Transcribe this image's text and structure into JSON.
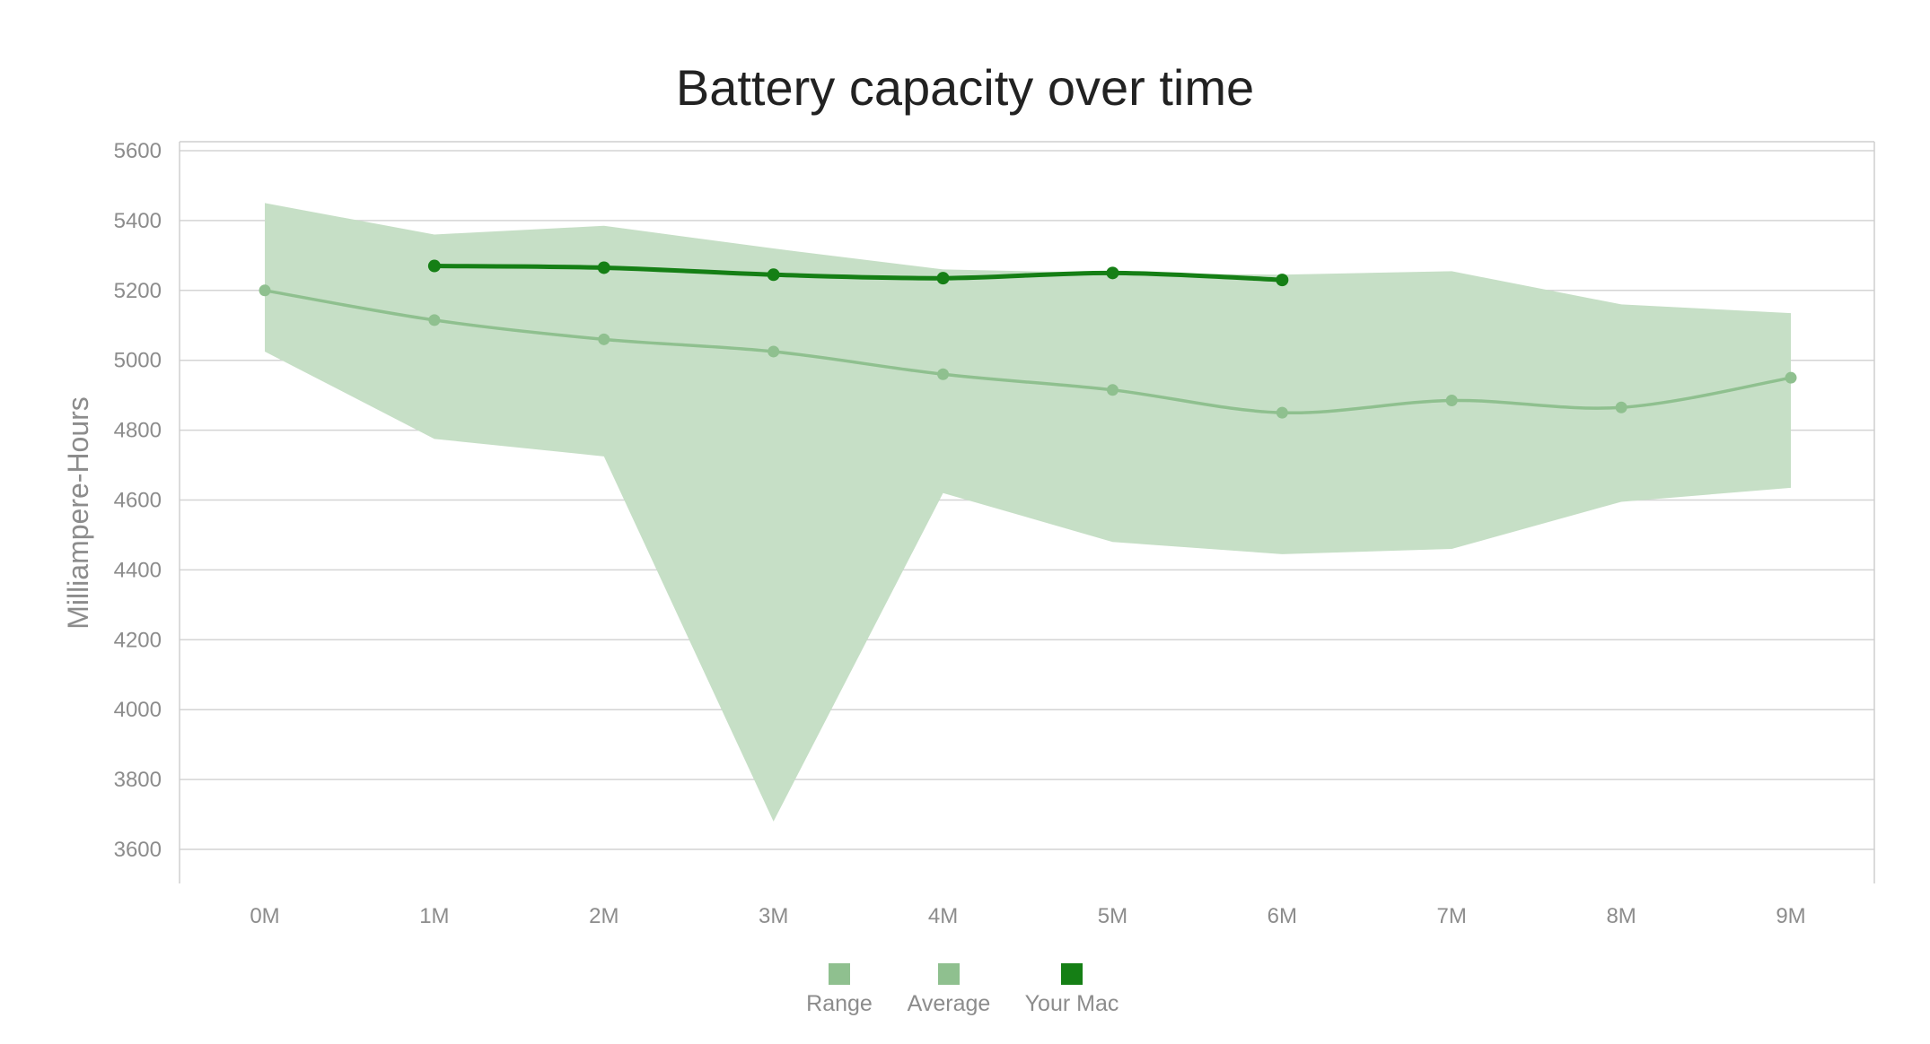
{
  "chart_data": {
    "type": "line",
    "title": "Battery capacity over time",
    "xlabel": "",
    "ylabel": "Milliampere-Hours",
    "categories": [
      "0M",
      "1M",
      "2M",
      "3M",
      "4M",
      "5M",
      "6M",
      "7M",
      "8M",
      "9M"
    ],
    "ylim": [
      3500,
      5620
    ],
    "yticks": [
      3600,
      3800,
      4000,
      4200,
      4400,
      4600,
      4800,
      5000,
      5200,
      5400,
      5600
    ],
    "grid": true,
    "legend_position": "bottom",
    "series": [
      {
        "name": "Range",
        "type": "area-range",
        "color": "#c6dfc6",
        "legend_color": "#8fc08f",
        "upper": [
          5450,
          5360,
          5385,
          5320,
          5260,
          5250,
          5245,
          5255,
          5160,
          5135
        ],
        "lower": [
          5025,
          4775,
          4725,
          3680,
          4620,
          4480,
          4445,
          4460,
          4595,
          4635
        ]
      },
      {
        "name": "Average",
        "type": "line",
        "color": "#8fc08f",
        "values": [
          5200,
          5115,
          5060,
          5025,
          4960,
          4915,
          4850,
          4885,
          4865,
          4950
        ]
      },
      {
        "name": "Your Mac",
        "type": "line",
        "color": "#157f15",
        "values": [
          null,
          5270,
          5265,
          5245,
          5235,
          5250,
          5230,
          null,
          null,
          null
        ]
      }
    ]
  }
}
